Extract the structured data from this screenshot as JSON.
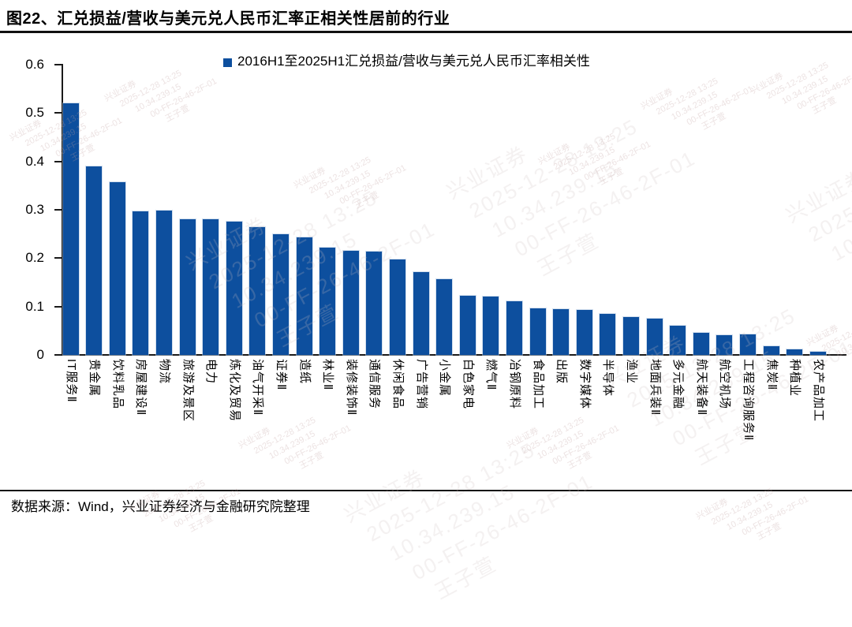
{
  "header": {
    "title": "图22、汇兑损益/营收与美元兑人民币汇率正相关性居前的行业"
  },
  "legend": {
    "label": "2016H1至2025H1汇兑损益/营收与美元兑人民币汇率相关性"
  },
  "footer": {
    "source": "数据来源：Wind，兴业证券经济与金融研究院整理"
  },
  "watermark": {
    "lines": [
      "兴业证券",
      "2025-12-28 13:25",
      "10.34.239.15",
      "00-FF-26-46-2F-01",
      "王子萱"
    ]
  },
  "colors": {
    "bar": "#0d4f9e",
    "axis": "#1a1a1a",
    "title_text": "#000000"
  },
  "chart_data": {
    "type": "bar",
    "title": "图22、汇兑损益/营收与美元兑人民币汇率正相关性居前的行业",
    "series_name": "2016H1至2025H1汇兑损益/营收与美元兑人民币汇率相关性",
    "categories": [
      "IT服务Ⅱ",
      "贵金属",
      "饮料乳品",
      "房屋建设Ⅱ",
      "物流",
      "旅游及景区",
      "电力",
      "炼化及贸易",
      "油气开采Ⅱ",
      "证券Ⅱ",
      "造纸",
      "林业Ⅱ",
      "装修装饰Ⅱ",
      "通信服务",
      "休闲食品",
      "广告营销",
      "小金属",
      "白色家电",
      "燃气Ⅱ",
      "冶钢原料",
      "食品加工",
      "出版",
      "数字媒体",
      "半导体",
      "渔业",
      "地面兵装Ⅱ",
      "多元金融",
      "航天装备Ⅱ",
      "航空机场",
      "工程咨询服务Ⅱ",
      "焦炭Ⅱ",
      "种植业",
      "农产品加工"
    ],
    "values": [
      0.52,
      0.39,
      0.357,
      0.297,
      0.298,
      0.28,
      0.28,
      0.275,
      0.264,
      0.25,
      0.243,
      0.221,
      0.216,
      0.213,
      0.197,
      0.171,
      0.156,
      0.123,
      0.121,
      0.111,
      0.097,
      0.095,
      0.093,
      0.085,
      0.078,
      0.075,
      0.06,
      0.045,
      0.041,
      0.042,
      0.018,
      0.012,
      0.007
    ],
    "xlabel": "",
    "ylabel": "",
    "ylim": [
      0,
      0.6
    ],
    "ytick_labels": [
      "0",
      "0.1",
      "0.2",
      "0.3",
      "0.4",
      "0.5",
      "0.6"
    ],
    "grid": false,
    "legend_position": "top"
  }
}
